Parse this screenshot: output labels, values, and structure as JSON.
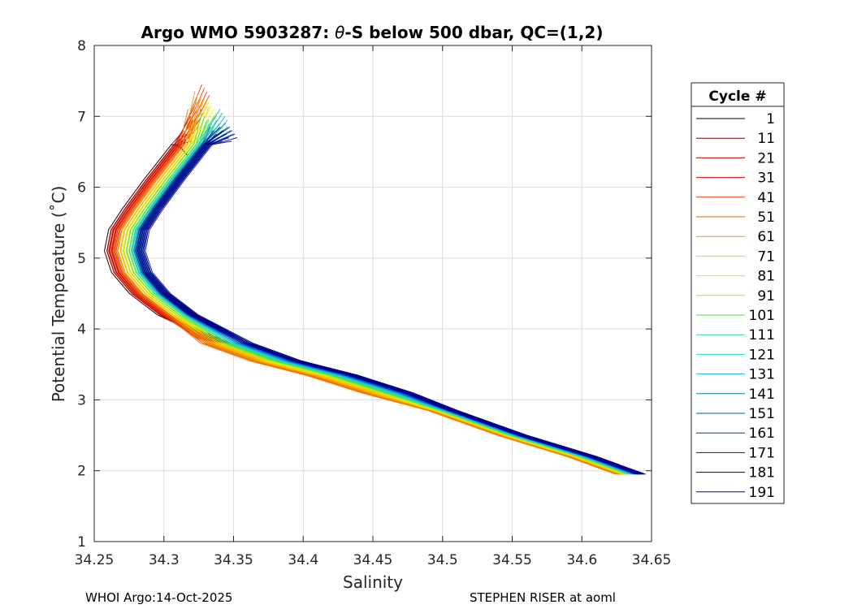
{
  "chart_data": {
    "type": "line",
    "title_prefix": "Argo WMO 5903287: ",
    "title_theta": "θ",
    "title_suffix": "-S below 500 dbar,  QC=(1,2)",
    "xlabel": "Salinity",
    "ylabel": "Potential Temperature (˚C)",
    "xlim": [
      34.25,
      34.65
    ],
    "ylim": [
      1,
      8
    ],
    "xticks": [
      "34.25",
      "34.3",
      "34.35",
      "34.4",
      "34.45",
      "34.5",
      "34.55",
      "34.6",
      "34.65"
    ],
    "yticks": [
      "1",
      "2",
      "3",
      "4",
      "5",
      "6",
      "7",
      "8"
    ],
    "grid": true,
    "legend": {
      "title": "Cycle #",
      "placement": "right",
      "entries": [
        {
          "label": "1",
          "color": "#000000"
        },
        {
          "label": "11",
          "color": "#7f0000"
        },
        {
          "label": "21",
          "color": "#c00000"
        },
        {
          "label": "31",
          "color": "#e00000"
        },
        {
          "label": "41",
          "color": "#ee3a00"
        },
        {
          "label": "51",
          "color": "#f06a00"
        },
        {
          "label": "61",
          "color": "#f49c00"
        },
        {
          "label": "71",
          "color": "#f8d000"
        },
        {
          "label": "81",
          "color": "#e0f000"
        },
        {
          "label": "91",
          "color": "#a0f020"
        },
        {
          "label": "101",
          "color": "#40e040"
        },
        {
          "label": "111",
          "color": "#20e0a0"
        },
        {
          "label": "121",
          "color": "#20d8d0"
        },
        {
          "label": "131",
          "color": "#10b0e0"
        },
        {
          "label": "141",
          "color": "#0080c0"
        },
        {
          "label": "151",
          "color": "#0050d0"
        },
        {
          "label": "161",
          "color": "#0030b0"
        },
        {
          "label": "171",
          "color": "#001890"
        },
        {
          "label": "181",
          "color": "#000060"
        },
        {
          "label": "191",
          "color": "#0000a0"
        }
      ]
    },
    "series_template": {
      "salinity": [
        34.33,
        34.32,
        34.3,
        34.285,
        34.275,
        34.272,
        34.277,
        34.29,
        34.31,
        34.345,
        34.38,
        34.42,
        34.46,
        34.5,
        34.55,
        34.6,
        34.635
      ],
      "temperature": [
        7.2,
        6.6,
        6.1,
        5.7,
        5.4,
        5.1,
        4.8,
        4.5,
        4.2,
        3.8,
        3.55,
        3.35,
        3.1,
        2.85,
        2.5,
        2.2,
        1.95
      ]
    },
    "salinity_offsets_deep": [
      0.0,
      -0.002,
      -0.004,
      -0.006,
      -0.007,
      -0.008,
      -0.006,
      -0.004,
      -0.002,
      0.0,
      0.001,
      0.002,
      0.003,
      0.004,
      0.005,
      0.006,
      0.007,
      0.007,
      0.008,
      0.008
    ],
    "salinity_offsets_mid": [
      -0.012,
      -0.012,
      -0.01,
      -0.009,
      -0.008,
      -0.006,
      -0.004,
      -0.002,
      0.0,
      0.002,
      0.004,
      0.006,
      0.007,
      0.008,
      0.009,
      0.01,
      0.01,
      0.011,
      0.011,
      0.012
    ],
    "top_temperature": [
      6.6,
      6.8,
      7.0,
      7.2,
      7.45,
      7.1,
      7.35,
      7.3,
      7.2,
      7.0,
      7.05,
      6.95,
      7.0,
      7.1,
      6.9,
      6.85,
      6.8,
      6.85,
      6.8,
      6.85
    ]
  },
  "footer": {
    "left": "WHOI Argo:14-Oct-2025",
    "right": "STEPHEN RISER at aoml"
  }
}
